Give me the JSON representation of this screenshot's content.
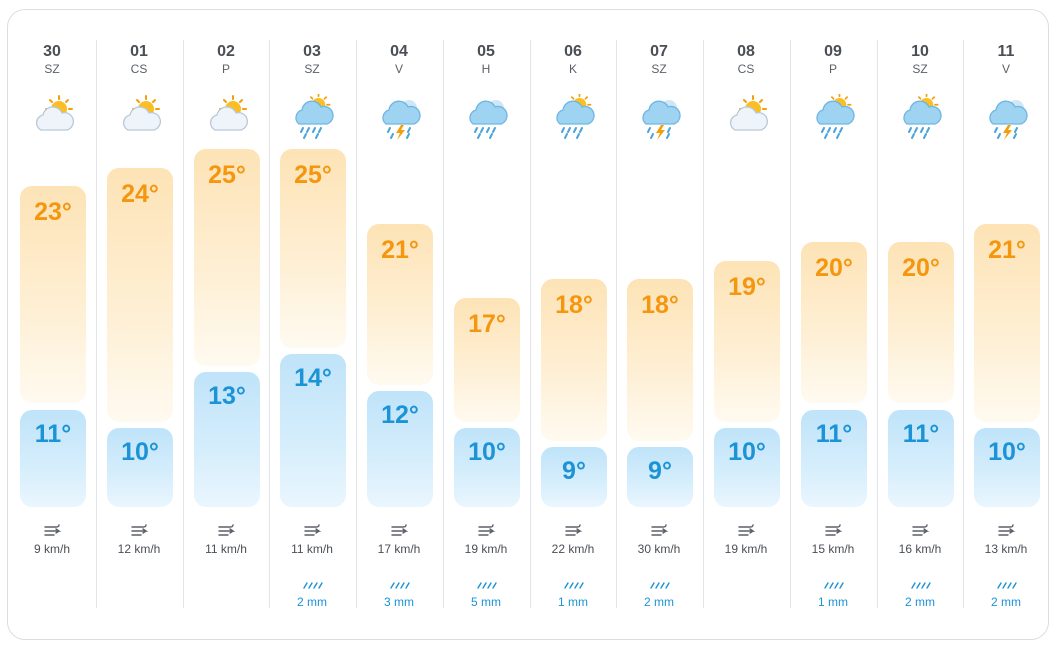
{
  "colors": {
    "high": "#f5960f",
    "low": "#1b93d6",
    "high_bar": "#fde3b6",
    "low_bar": "#bfe3f9"
  },
  "days": [
    {
      "date": "30",
      "dow": "SZ",
      "icon": "partly-cloudy-icon",
      "high": "23°",
      "low": "11°",
      "hi_val": 23,
      "lo_val": 11,
      "wind": "9 km/h",
      "rain": ""
    },
    {
      "date": "01",
      "dow": "CS",
      "icon": "partly-cloudy-icon",
      "high": "24°",
      "low": "10°",
      "hi_val": 24,
      "lo_val": 10,
      "wind": "12 km/h",
      "rain": ""
    },
    {
      "date": "02",
      "dow": "P",
      "icon": "partly-cloudy-icon",
      "high": "25°",
      "low": "13°",
      "hi_val": 25,
      "lo_val": 13,
      "wind": "11 km/h",
      "rain": ""
    },
    {
      "date": "03",
      "dow": "SZ",
      "icon": "sun-rain-icon",
      "high": "25°",
      "low": "14°",
      "hi_val": 25,
      "lo_val": 14,
      "wind": "11 km/h",
      "rain": "2 mm"
    },
    {
      "date": "04",
      "dow": "V",
      "icon": "thunderstorm-icon",
      "high": "21°",
      "low": "12°",
      "hi_val": 21,
      "lo_val": 12,
      "wind": "17 km/h",
      "rain": "3 mm"
    },
    {
      "date": "05",
      "dow": "H",
      "icon": "rain-cloud-icon",
      "high": "17°",
      "low": "10°",
      "hi_val": 17,
      "lo_val": 10,
      "wind": "19 km/h",
      "rain": "5 mm"
    },
    {
      "date": "06",
      "dow": "K",
      "icon": "sun-rain-icon",
      "high": "18°",
      "low": "9°",
      "hi_val": 18,
      "lo_val": 9,
      "wind": "22 km/h",
      "rain": "1 mm"
    },
    {
      "date": "07",
      "dow": "SZ",
      "icon": "thunderstorm-icon",
      "high": "18°",
      "low": "9°",
      "hi_val": 18,
      "lo_val": 9,
      "wind": "30 km/h",
      "rain": "2 mm"
    },
    {
      "date": "08",
      "dow": "CS",
      "icon": "partly-cloudy-icon",
      "high": "19°",
      "low": "10°",
      "hi_val": 19,
      "lo_val": 10,
      "wind": "19 km/h",
      "rain": ""
    },
    {
      "date": "09",
      "dow": "P",
      "icon": "sun-rain-icon",
      "high": "20°",
      "low": "11°",
      "hi_val": 20,
      "lo_val": 11,
      "wind": "15 km/h",
      "rain": "1 mm"
    },
    {
      "date": "10",
      "dow": "SZ",
      "icon": "sun-rain-icon",
      "high": "20°",
      "low": "11°",
      "hi_val": 20,
      "lo_val": 11,
      "wind": "16 km/h",
      "rain": "2 mm"
    },
    {
      "date": "11",
      "dow": "V",
      "icon": "thunderstorm-icon",
      "high": "21°",
      "low": "10°",
      "hi_val": 21,
      "lo_val": 10,
      "wind": "13 km/h",
      "rain": "2 mm"
    }
  ]
}
